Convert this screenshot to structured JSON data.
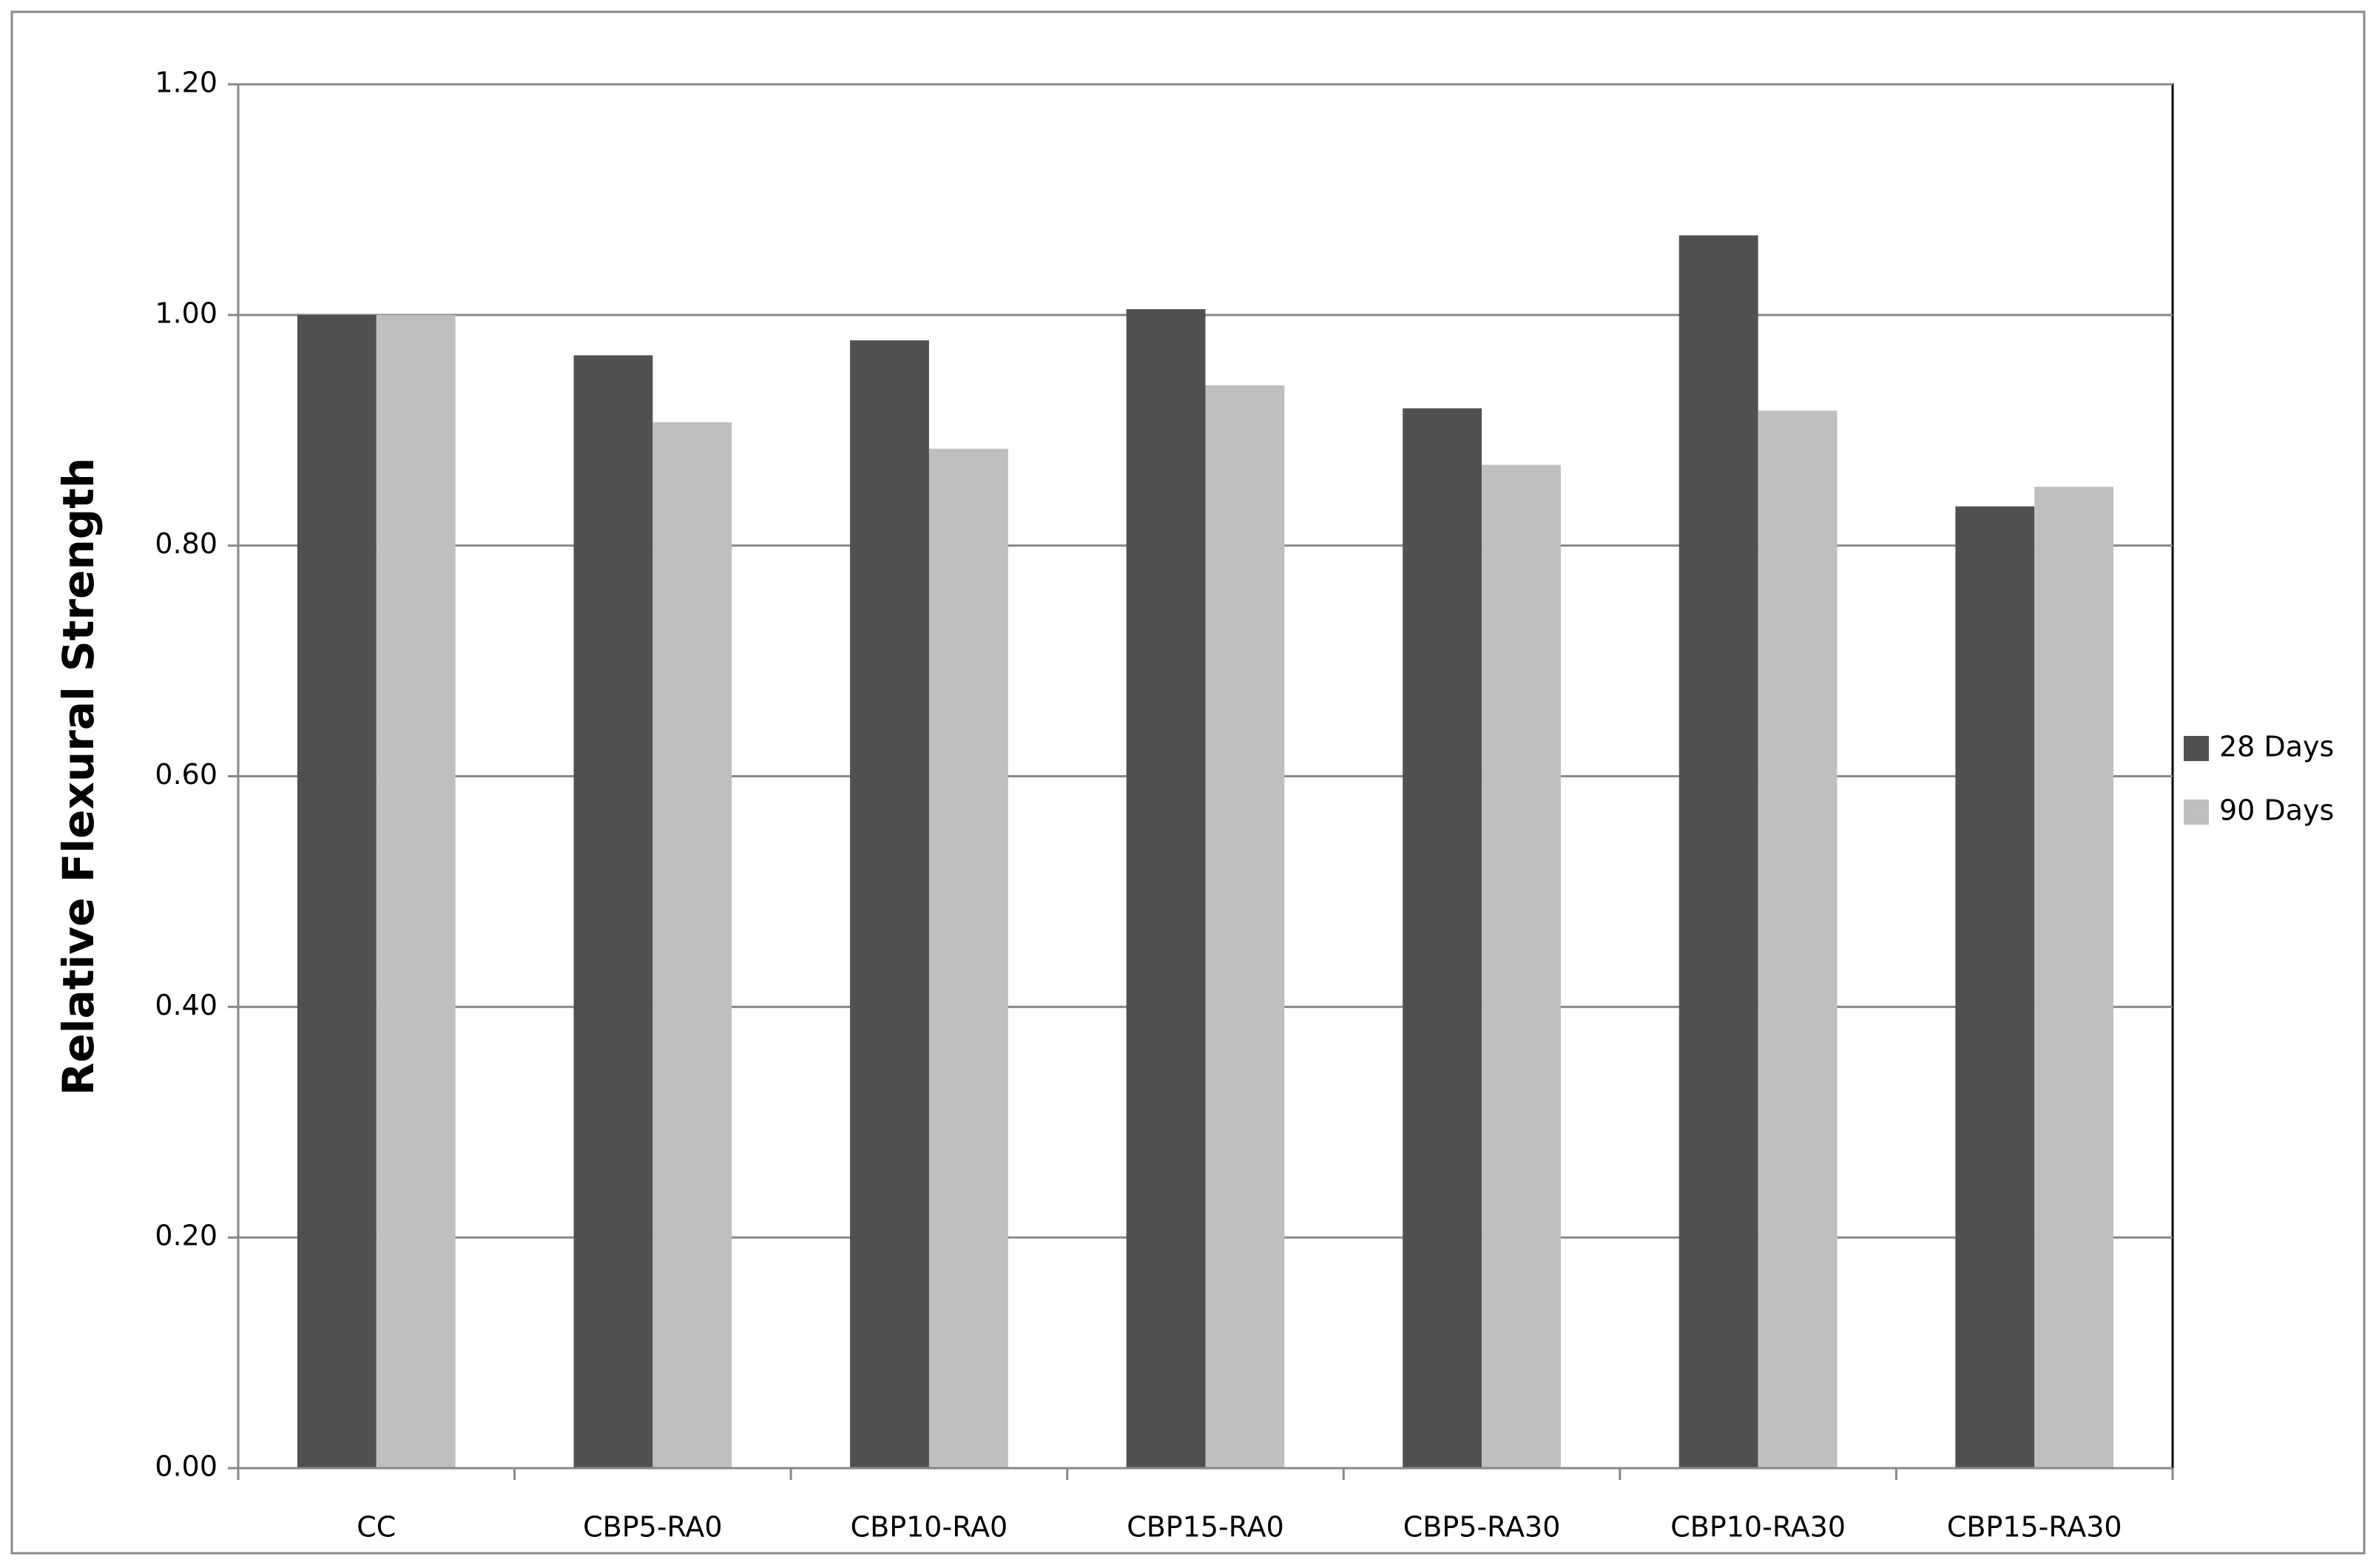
{
  "chart_data": {
    "type": "bar",
    "y_label": "Relative Flexural Strength",
    "categories": [
      "CC",
      "CBP5-RA0",
      "CBP10-RA0",
      "CBP15-RA0",
      "CBP5-RA30",
      "CBP10-RA30",
      "CBP15-RA30"
    ],
    "series": [
      {
        "name": "28 Days",
        "color": "#505050",
        "values": [
          1.0,
          0.965,
          0.978,
          1.005,
          0.919,
          1.069,
          0.834
        ]
      },
      {
        "name": "90 Days",
        "color": "#bfbfbf",
        "values": [
          1.0,
          0.907,
          0.884,
          0.939,
          0.87,
          0.917,
          0.851
        ]
      }
    ],
    "ylim": [
      0,
      1.2
    ],
    "yticks": [
      {
        "value": 0,
        "label": "0.00"
      },
      {
        "value": 0.2,
        "label": "0.20"
      },
      {
        "value": 0.4,
        "label": "0.40"
      },
      {
        "value": 0.6,
        "label": "0.60"
      },
      {
        "value": 0.8,
        "label": "0.80"
      },
      {
        "value": 1.0,
        "label": "1.00"
      },
      {
        "value": 1.2,
        "label": "1.20"
      }
    ],
    "grid": true,
    "legend": "right"
  }
}
